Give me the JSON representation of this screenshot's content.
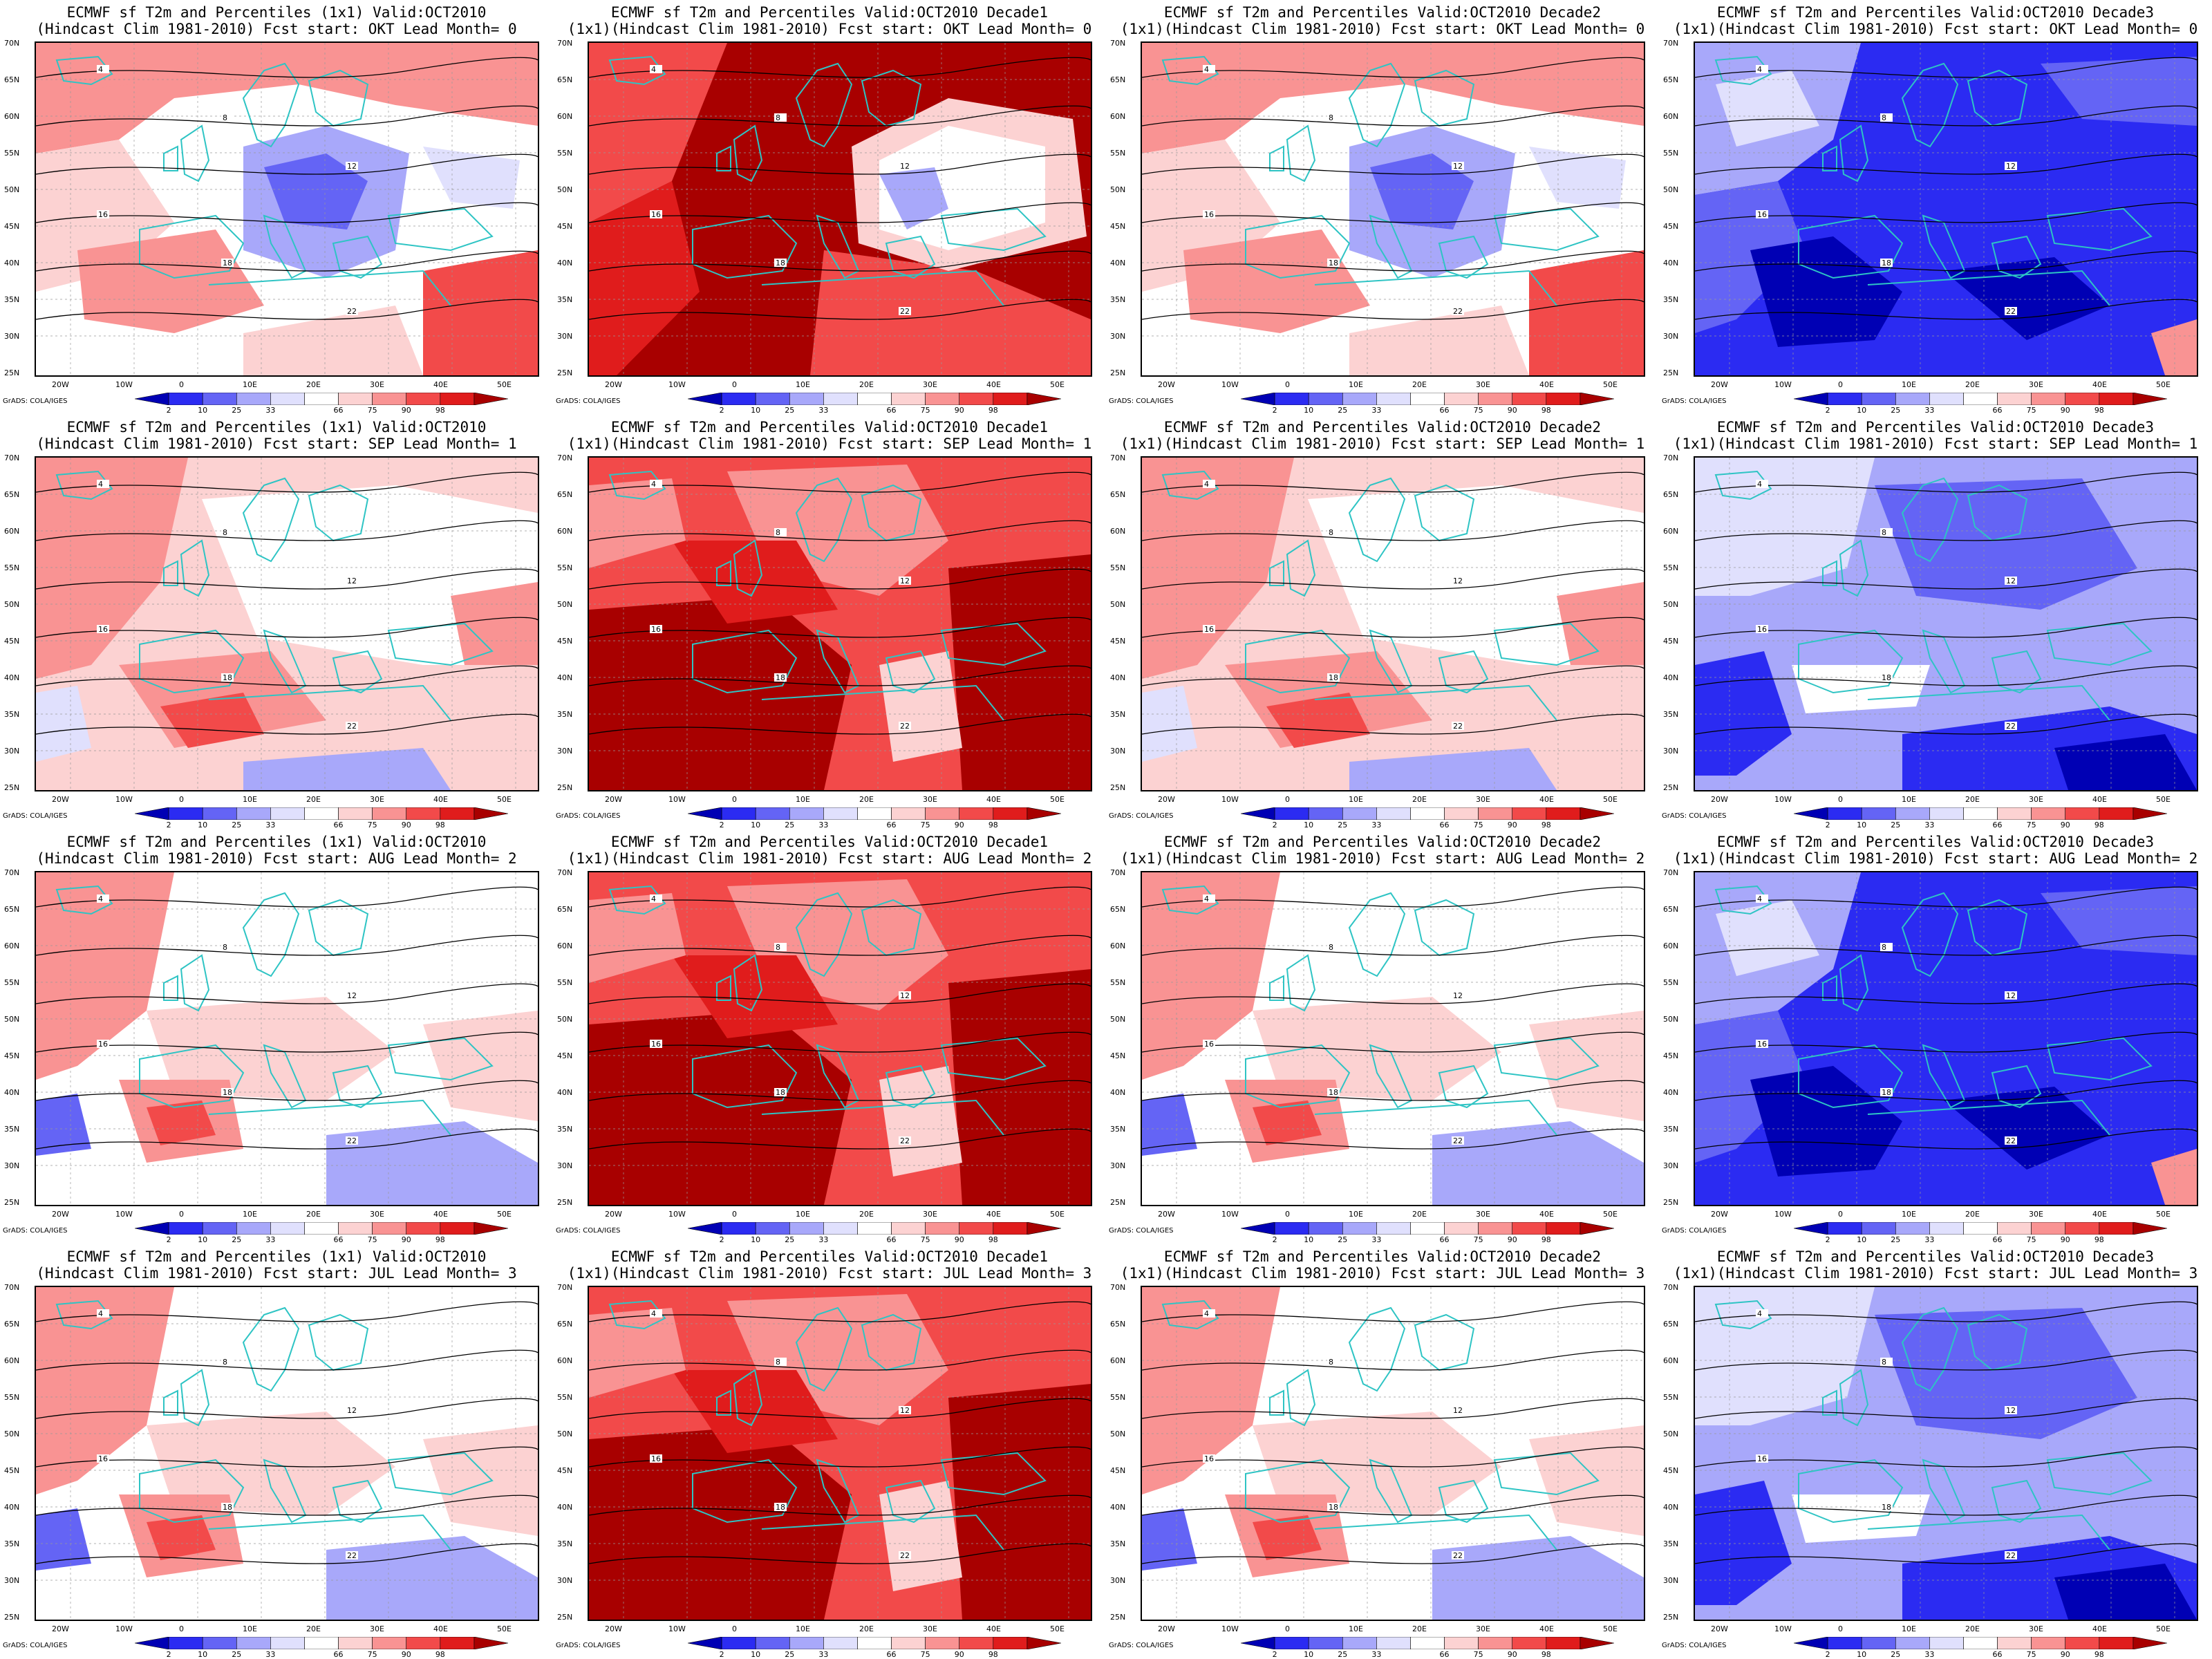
{
  "colors": {
    "c1": "#0000b4",
    "c2": "#2b2bf2",
    "c3": "#6464f5",
    "c4": "#a8a8fa",
    "c5": "#e0e0fd",
    "c6": "#ffffff",
    "c7": "#fcd2d2",
    "c8": "#f99393",
    "c9": "#f24a4a",
    "c10": "#e01c1c",
    "c11": "#a80000",
    "coast": "#2ec4c4",
    "contour": "#000000"
  },
  "common": {
    "lat_labels": [
      "70N",
      "65N",
      "60N",
      "55N",
      "50N",
      "45N",
      "40N",
      "35N",
      "30N",
      "25N"
    ],
    "lon_labels": [
      "20W",
      "10W",
      "0",
      "10E",
      "20E",
      "30E",
      "40E",
      "50E"
    ],
    "colorbar_labels": [
      "2",
      "10",
      "25",
      "33",
      "66",
      "75",
      "90",
      "98"
    ],
    "credit": "GrADS: COLA/IGES"
  },
  "panels": [
    {
      "title1": "ECMWF sf T2m and Percentiles (1x1) Valid:OCT2010",
      "title2": "(Hindcast Clim 1981-2010) Fcst start: OKT  Lead Month= 0",
      "field": "mixed-cold-center",
      "contours": [
        "4",
        "8",
        "12",
        "16",
        "18",
        "22"
      ]
    },
    {
      "title1": "ECMWF sf T2m and Percentiles Valid:OCT2010 Decade1",
      "title2": "(1x1)(Hindcast Clim 1981-2010) Fcst start: OKT  Lead Month= 0",
      "field": "warm-cold-center",
      "contours": [
        "4",
        "8",
        "12",
        "16",
        "18",
        "22"
      ]
    },
    {
      "title1": "ECMWF sf T2m and Percentiles Valid:OCT2010 Decade2",
      "title2": "(1x1)(Hindcast Clim 1981-2010) Fcst start: OKT  Lead Month= 0",
      "field": "mixed-cold-center",
      "contours": [
        "4",
        "8",
        "12",
        "16",
        "18",
        "22"
      ]
    },
    {
      "title1": "ECMWF sf T2m and Percentiles Valid:OCT2010 Decade3",
      "title2": "(1x1)(Hindcast Clim 1981-2010) Fcst start: OKT  Lead Month= 0",
      "field": "cold",
      "contours": [
        "4",
        "8",
        "12",
        "16",
        "18",
        "22"
      ]
    },
    {
      "title1": "ECMWF sf T2m and Percentiles (1x1) Valid:OCT2010",
      "title2": "(Hindcast Clim 1981-2010) Fcst start: SEP  Lead Month= 1",
      "field": "mild-warm",
      "contours": [
        "4",
        "8",
        "12",
        "16",
        "18",
        "22"
      ]
    },
    {
      "title1": "ECMWF sf T2m and Percentiles Valid:OCT2010 Decade1",
      "title2": "(1x1)(Hindcast Clim 1981-2010) Fcst start: SEP  Lead Month= 1",
      "field": "very-warm",
      "contours": [
        "4",
        "8",
        "12",
        "16",
        "18",
        "22"
      ]
    },
    {
      "title1": "ECMWF sf T2m and Percentiles Valid:OCT2010 Decade2",
      "title2": "(1x1)(Hindcast Clim 1981-2010) Fcst start: SEP  Lead Month= 1",
      "field": "mild-warm",
      "contours": [
        "4",
        "8",
        "12",
        "16",
        "18",
        "22"
      ]
    },
    {
      "title1": "ECMWF sf T2m and Percentiles Valid:OCT2010 Decade3",
      "title2": "(1x1)(Hindcast Clim 1981-2010) Fcst start: SEP  Lead Month= 1",
      "field": "cold-light",
      "contours": [
        "4",
        "8",
        "12",
        "16",
        "18",
        "22"
      ]
    },
    {
      "title1": "ECMWF sf T2m and Percentiles (1x1) Valid:OCT2010",
      "title2": "(Hindcast Clim 1981-2010) Fcst start: AUG  Lead Month= 2",
      "field": "mild-warm-south-cold",
      "contours": [
        "4",
        "8",
        "12",
        "16",
        "18",
        "22"
      ]
    },
    {
      "title1": "ECMWF sf T2m and Percentiles Valid:OCT2010 Decade1",
      "title2": "(1x1)(Hindcast Clim 1981-2010) Fcst start: AUG  Lead Month= 2",
      "field": "very-warm",
      "contours": [
        "4",
        "8",
        "12",
        "16",
        "18",
        "22"
      ]
    },
    {
      "title1": "ECMWF sf T2m and Percentiles Valid:OCT2010 Decade2",
      "title2": "(1x1)(Hindcast Clim 1981-2010) Fcst start: AUG  Lead Month= 2",
      "field": "mild-warm-south-cold",
      "contours": [
        "4",
        "8",
        "12",
        "16",
        "18",
        "22"
      ]
    },
    {
      "title1": "ECMWF sf T2m and Percentiles Valid:OCT2010 Decade3",
      "title2": "(1x1)(Hindcast Clim 1981-2010) Fcst start: AUG  Lead Month= 2",
      "field": "cold",
      "contours": [
        "4",
        "8",
        "12",
        "16",
        "18",
        "22"
      ]
    },
    {
      "title1": "ECMWF sf T2m and Percentiles (1x1) Valid:OCT2010",
      "title2": "(Hindcast Clim 1981-2010) Fcst start: JUL  Lead Month= 3",
      "field": "mild-warm-south-cold",
      "contours": [
        "4",
        "8",
        "12",
        "16",
        "18",
        "22"
      ]
    },
    {
      "title1": "ECMWF sf T2m and Percentiles Valid:OCT2010 Decade1",
      "title2": "(1x1)(Hindcast Clim 1981-2010) Fcst start: JUL  Lead Month= 3",
      "field": "very-warm",
      "contours": [
        "4",
        "8",
        "12",
        "16",
        "18",
        "22"
      ]
    },
    {
      "title1": "ECMWF sf T2m and Percentiles Valid:OCT2010 Decade2",
      "title2": "(1x1)(Hindcast Clim 1981-2010) Fcst start: JUL  Lead Month= 3",
      "field": "mild-warm-south-cold",
      "contours": [
        "4",
        "8",
        "12",
        "16",
        "18",
        "22"
      ]
    },
    {
      "title1": "ECMWF sf T2m and Percentiles Valid:OCT2010 Decade3",
      "title2": "(1x1)(Hindcast Clim 1981-2010) Fcst start: JUL  Lead Month= 3",
      "field": "cold-light",
      "contours": [
        "4",
        "8",
        "12",
        "16",
        "18",
        "22"
      ]
    }
  ]
}
